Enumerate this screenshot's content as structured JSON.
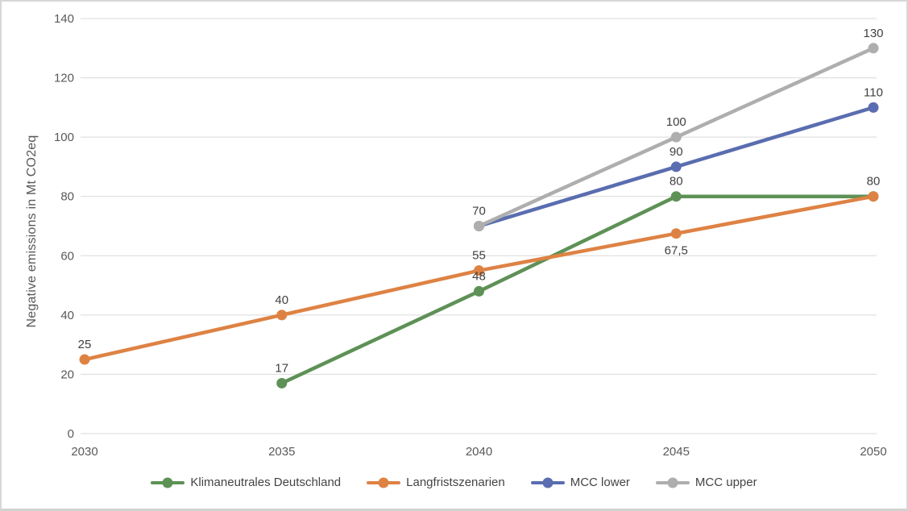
{
  "chart_data": {
    "type": "line",
    "title": "",
    "xlabel": "",
    "ylabel": "Negative emissions in Mt CO2eq",
    "categories": [
      "2030",
      "2035",
      "2040",
      "2045",
      "2050"
    ],
    "ylim": [
      0,
      140
    ],
    "ytick_step": 20,
    "yticks": [
      0,
      20,
      40,
      60,
      80,
      100,
      120,
      140
    ],
    "grid": "horizontal",
    "gridline_color": "#D9D9D9",
    "axis_text_color": "#595959",
    "data_label_color": "#404040",
    "legend_position": "bottom",
    "series": [
      {
        "name": "Klimaneutrales Deutschland",
        "color": "#5E9156",
        "values": [
          null,
          17,
          48,
          80,
          80
        ],
        "data_labels": [
          "",
          "17",
          "48",
          "80",
          ""
        ],
        "label_side": [
          "",
          "above",
          "above",
          "above",
          ""
        ]
      },
      {
        "name": "Langfristszenarien",
        "color": "#DE8244",
        "values": [
          25,
          40,
          55,
          67.5,
          80
        ],
        "data_labels": [
          "25",
          "40",
          "55",
          "67,5",
          "80"
        ],
        "label_side": [
          "above",
          "above",
          "above",
          "below",
          "above"
        ]
      },
      {
        "name": "MCC lower",
        "color": "#5A6DB0",
        "values": [
          null,
          null,
          70,
          90,
          110
        ],
        "data_labels": [
          "",
          "",
          "",
          "90",
          "110"
        ],
        "label_side": [
          "",
          "",
          "",
          "above",
          "above"
        ]
      },
      {
        "name": "MCC upper",
        "color": "#AFAEAE",
        "values": [
          null,
          null,
          70,
          100,
          130
        ],
        "data_labels": [
          "",
          "",
          "70",
          "100",
          "130"
        ],
        "label_side": [
          "",
          "",
          "above",
          "above",
          "above"
        ]
      }
    ]
  }
}
